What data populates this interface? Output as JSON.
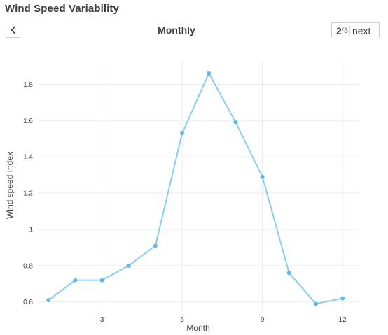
{
  "header": {
    "title": "Wind Speed Variability",
    "view_title": "Monthly"
  },
  "pager": {
    "current": "2",
    "separator": "/",
    "total": "3",
    "next_label": "next"
  },
  "icons": {
    "back": "chevron-left-icon"
  },
  "colors": {
    "line": "#88cdf3",
    "marker": "#5fb8ec",
    "grid": "#ebebeb",
    "text": "#444444"
  },
  "chart_data": {
    "type": "line",
    "xlabel": "Month",
    "ylabel": "Wind speed Index",
    "x": [
      1,
      2,
      3,
      4,
      5,
      6,
      7,
      8,
      9,
      10,
      11,
      12
    ],
    "series": [
      {
        "values": [
          0.61,
          0.72,
          0.72,
          0.8,
          0.91,
          1.53,
          1.86,
          1.59,
          1.29,
          0.76,
          0.59,
          0.62
        ]
      }
    ],
    "xlim": [
      0.6,
      12.6
    ],
    "ylim": [
      0.545,
      1.925
    ],
    "xticks": [
      3,
      6,
      9,
      12
    ],
    "xtick_labels": [
      "3",
      "6",
      "9",
      "12"
    ],
    "yticks": [
      0.6,
      0.8,
      1,
      1.2,
      1.4,
      1.6,
      1.8
    ],
    "ytick_labels": [
      "0.6",
      "0.8",
      "1",
      "1.2",
      "1.4",
      "1.6",
      "1.8"
    ],
    "grid": true,
    "legend": "none"
  }
}
